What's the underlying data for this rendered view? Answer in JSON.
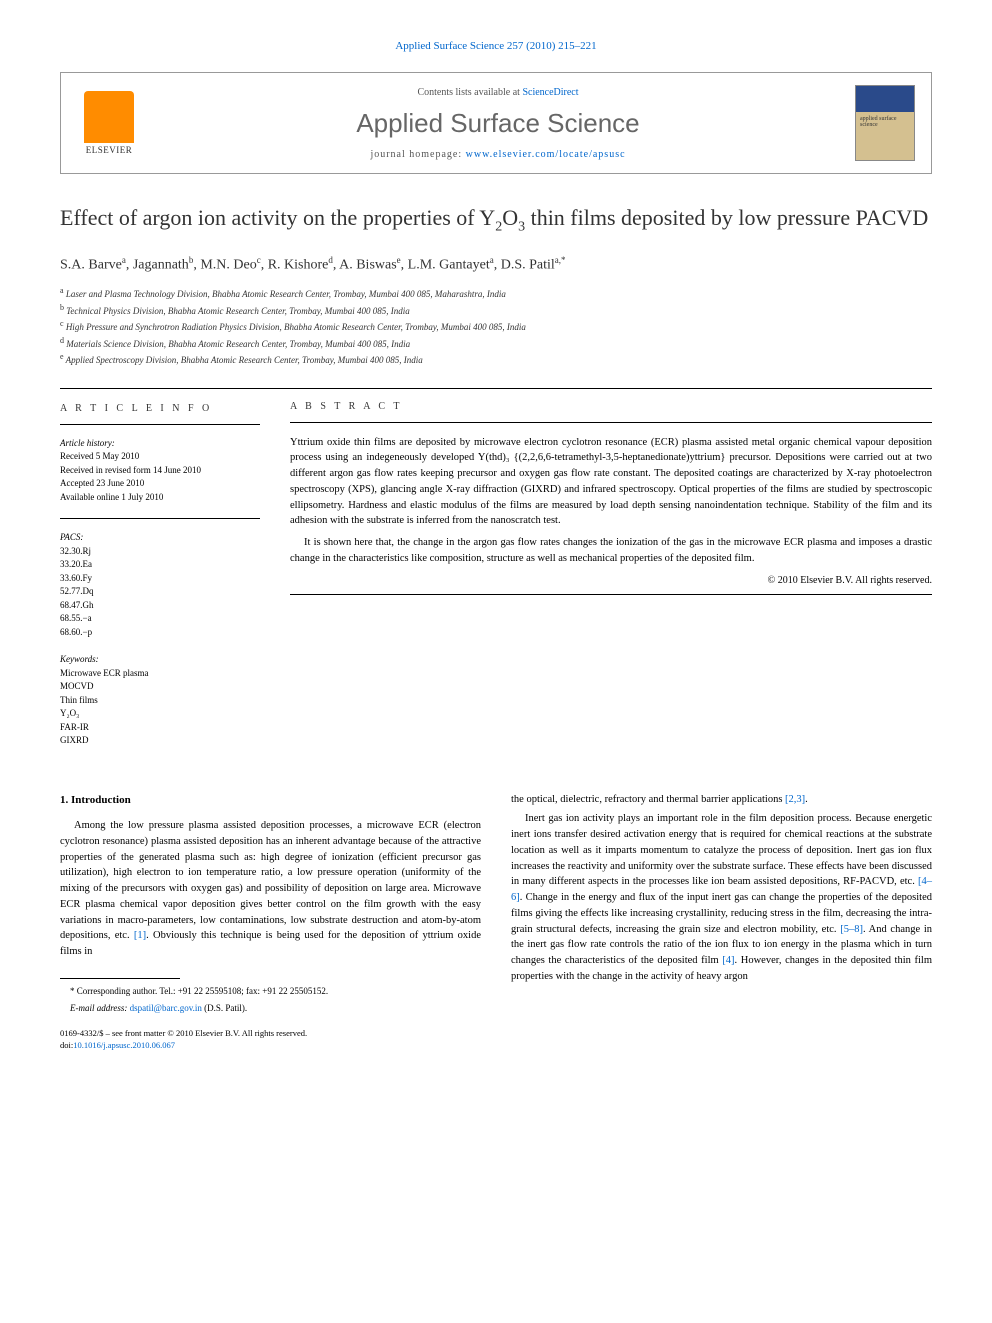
{
  "journal_ref": "Applied Surface Science 257 (2010) 215–221",
  "header": {
    "contents_prefix": "Contents lists available at ",
    "contents_link": "ScienceDirect",
    "journal_name": "Applied Surface Science",
    "homepage_prefix": "journal homepage: ",
    "homepage_link": "www.elsevier.com/locate/apsusc",
    "elsevier_label": "ELSEVIER",
    "cover_text": "applied surface science"
  },
  "title_html": "Effect of argon ion activity on the properties of Y<sub>2</sub>O<sub>3</sub> thin films deposited by low pressure PACVD",
  "authors_html": "S.A. Barve<sup>a</sup>, Jagannath<sup>b</sup>, M.N. Deo<sup>c</sup>, R. Kishore<sup>d</sup>, A. Biswas<sup>e</sup>, L.M. Gantayet<sup>a</sup>, D.S. Patil<sup>a,*</sup>",
  "affiliations": [
    {
      "sup": "a",
      "text": "Laser and Plasma Technology Division, Bhabha Atomic Research Center, Trombay, Mumbai 400 085, Maharashtra, India"
    },
    {
      "sup": "b",
      "text": "Technical Physics Division, Bhabha Atomic Research Center, Trombay, Mumbai 400 085, India"
    },
    {
      "sup": "c",
      "text": "High Pressure and Synchrotron Radiation Physics Division, Bhabha Atomic Research Center, Trombay, Mumbai 400 085, India"
    },
    {
      "sup": "d",
      "text": "Materials Science Division, Bhabha Atomic Research Center, Trombay, Mumbai 400 085, India"
    },
    {
      "sup": "e",
      "text": "Applied Spectroscopy Division, Bhabha Atomic Research Center, Trombay, Mumbai 400 085, India"
    }
  ],
  "info": {
    "heading": "A R T I C L E  I N F O",
    "history_label": "Article history:",
    "history": [
      "Received 5 May 2010",
      "Received in revised form 14 June 2010",
      "Accepted 23 June 2010",
      "Available online 1 July 2010"
    ],
    "pacs_label": "PACS:",
    "pacs": [
      "32.30.Rj",
      "33.20.Ea",
      "33.60.Fy",
      "52.77.Dq",
      "68.47.Gh",
      "68.55.−a",
      "68.60.−p"
    ],
    "keywords_label": "Keywords:",
    "keywords": [
      "Microwave ECR plasma",
      "MOCVD",
      "Thin films",
      "Y₂O₃",
      "FAR-IR",
      "GIXRD"
    ]
  },
  "abstract": {
    "heading": "A B S T R A C T",
    "p1": "Yttrium oxide thin films are deposited by microwave electron cyclotron resonance (ECR) plasma assisted metal organic chemical vapour deposition process using an indegeneously developed Y(thd)₃ {(2,2,6,6-tetramethyl-3,5-heptanedionate)yttrium} precursor. Depositions were carried out at two different argon gas flow rates keeping precursor and oxygen gas flow rate constant. The deposited coatings are characterized by X-ray photoelectron spectroscopy (XPS), glancing angle X-ray diffraction (GIXRD) and infrared spectroscopy. Optical properties of the films are studied by spectroscopic ellipsometry. Hardness and elastic modulus of the films are measured by load depth sensing nanoindentation technique. Stability of the film and its adhesion with the substrate is inferred from the nanoscratch test.",
    "p2": "It is shown here that, the change in the argon gas flow rates changes the ionization of the gas in the microwave ECR plasma and imposes a drastic change in the characteristics like composition, structure as well as mechanical properties of the deposited film.",
    "copyright": "© 2010 Elsevier B.V. All rights reserved."
  },
  "body": {
    "section_heading": "1.  Introduction",
    "col1_p1_html": "Among the low pressure plasma assisted deposition processes, a microwave ECR (electron cyclotron resonance) plasma assisted deposition has an inherent advantage because of the attractive properties of the generated plasma such as: high degree of ionization (efficient precursor gas utilization), high electron to ion temperature ratio, a low pressure operation (uniformity of the mixing of the precursors with oxygen gas) and possibility of deposition on large area. Microwave ECR plasma chemical vapor deposition gives better control on the film growth with the easy variations in macro-parameters, low contaminations, low substrate destruction and atom-by-atom depositions, etc. <a class=\"ref-link\" href=\"#\">[1]</a>. Obviously this technique is being used for the deposition of yttrium oxide films in",
    "col2_p1_html": "the optical, dielectric, refractory and thermal barrier applications <a class=\"ref-link\" href=\"#\">[2,3]</a>.",
    "col2_p2_html": "Inert gas ion activity plays an important role in the film deposition process. Because energetic inert ions transfer desired activation energy that is required for chemical reactions at the substrate location as well as it imparts momentum to catalyze the process of deposition. Inert gas ion flux increases the reactivity and uniformity over the substrate surface. These effects have been discussed in many different aspects in the processes like ion beam assisted depositions, RF-PACVD, etc. <a class=\"ref-link\" href=\"#\">[4–6]</a>. Change in the energy and flux of the input inert gas can change the properties of the deposited films giving the effects like increasing crystallinity, reducing stress in the film, decreasing the intra-grain structural defects, increasing the grain size and electron mobility, etc. <a class=\"ref-link\" href=\"#\">[5–8]</a>. And change in the inert gas flow rate controls the ratio of the ion flux to ion energy in the plasma which in turn changes the characteristics of the deposited film <a class=\"ref-link\" href=\"#\">[4]</a>. However, changes in the deposited thin film properties with the change in the activity of heavy argon"
  },
  "footnotes": {
    "corresponding_html": "* Corresponding author. Tel.: +91 22 25595108; fax: +91 22 25505152.",
    "email_label": "E-mail address:",
    "email": "dspatil@barc.gov.in",
    "email_suffix": "(D.S. Patil)."
  },
  "footer": {
    "line1": "0169-4332/$ – see front matter © 2010 Elsevier B.V. All rights reserved.",
    "doi_prefix": "doi:",
    "doi": "10.1016/j.apsusc.2010.06.067"
  }
}
